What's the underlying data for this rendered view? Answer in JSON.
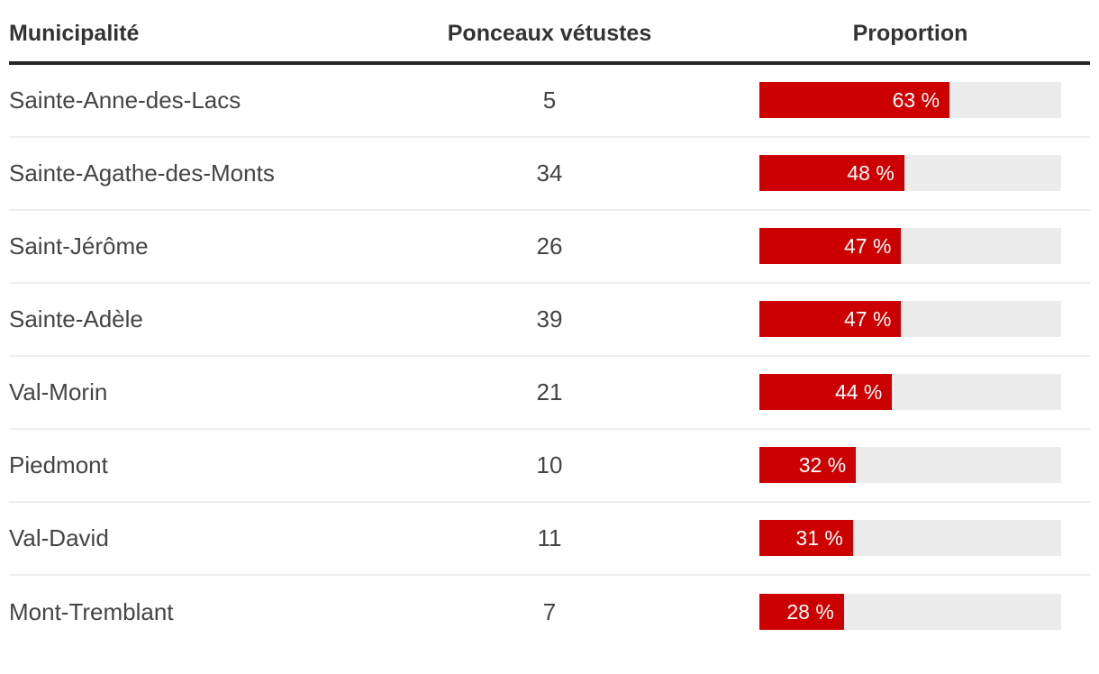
{
  "colors": {
    "bar_fill": "#cc0000",
    "bar_track": "#ececec",
    "header_rule": "#262626",
    "row_divider": "#eeeeee",
    "header_text": "#333333",
    "body_text": "#444444",
    "bar_label_text": "#ffffff"
  },
  "table": {
    "columns": [
      {
        "label": "Municipalité"
      },
      {
        "label": "Ponceaux vétustes"
      },
      {
        "label": "Proportion"
      }
    ],
    "rows": [
      {
        "municipality": "Sainte-Anne-des-Lacs",
        "count": "5",
        "percent": 63,
        "percent_label": "63 %"
      },
      {
        "municipality": "Sainte-Agathe-des-Monts",
        "count": "34",
        "percent": 48,
        "percent_label": "48 %"
      },
      {
        "municipality": "Saint-Jérôme",
        "count": "26",
        "percent": 47,
        "percent_label": "47 %"
      },
      {
        "municipality": "Sainte-Adèle",
        "count": "39",
        "percent": 47,
        "percent_label": "47 %"
      },
      {
        "municipality": "Val-Morin",
        "count": "21",
        "percent": 44,
        "percent_label": "44 %"
      },
      {
        "municipality": "Piedmont",
        "count": "10",
        "percent": 32,
        "percent_label": "32 %"
      },
      {
        "municipality": "Val-David",
        "count": "11",
        "percent": 31,
        "percent_label": "31 %"
      },
      {
        "municipality": "Mont-Tremblant",
        "count": "7",
        "percent": 28,
        "percent_label": "28 %"
      }
    ]
  },
  "chart_data": {
    "type": "bar",
    "orientation": "horizontal",
    "title": "",
    "categories": [
      "Sainte-Anne-des-Lacs",
      "Sainte-Agathe-des-Monts",
      "Saint-Jérôme",
      "Sainte-Adèle",
      "Val-Morin",
      "Piedmont",
      "Val-David",
      "Mont-Tremblant"
    ],
    "series": [
      {
        "name": "Ponceaux vétustes",
        "values": [
          5,
          34,
          26,
          39,
          21,
          10,
          11,
          7
        ]
      },
      {
        "name": "Proportion (%)",
        "values": [
          63,
          48,
          47,
          47,
          44,
          32,
          31,
          28
        ]
      }
    ],
    "xlim": [
      0,
      100
    ],
    "grid": false,
    "legend_position": "none",
    "bar_color": "#cc0000",
    "track_color": "#ececec",
    "data_labels": [
      "63 %",
      "48 %",
      "47 %",
      "47 %",
      "44 %",
      "32 %",
      "31 %",
      "28 %"
    ]
  }
}
